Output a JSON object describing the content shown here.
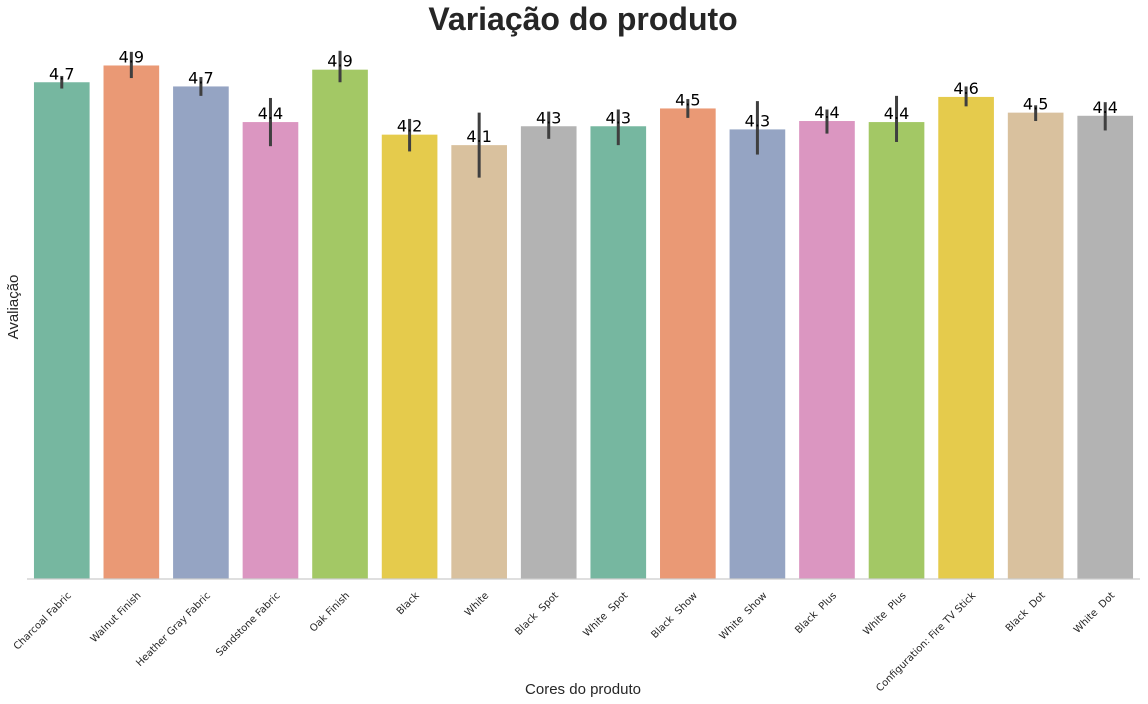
{
  "chart_data": {
    "type": "bar",
    "title": "Variação do produto",
    "xlabel": "Cores do produto",
    "ylabel": "Avaliação",
    "ylim": [
      0,
      5.0
    ],
    "grid": false,
    "categories": [
      "Charcoal Fabric",
      "Walnut Finish",
      "Heather Gray Fabric",
      "Sandstone Fabric",
      "Oak Finish",
      "Black",
      "White",
      "Black  Spot",
      "White  Spot",
      "Black  Show",
      "White  Show",
      "Black  Plus",
      "White  Plus",
      "Configuration: Fire TV Stick",
      "Black  Dot",
      "White  Dot"
    ],
    "values": [
      4.74,
      4.9,
      4.7,
      4.36,
      4.86,
      4.24,
      4.14,
      4.32,
      4.32,
      4.49,
      4.29,
      4.37,
      4.36,
      4.6,
      4.45,
      4.42
    ],
    "value_labels": [
      "4.7",
      "4.9",
      "4.7",
      "4.4",
      "4.9",
      "4.2",
      "4.1",
      "4.3",
      "4.3",
      "4.5",
      "4.3",
      "4.4",
      "4.4",
      "4.6",
      "4.5",
      "4.4"
    ],
    "error_bars": [
      [
        4.68,
        4.8
      ],
      [
        4.78,
        5.03
      ],
      [
        4.61,
        4.79
      ],
      [
        4.13,
        4.59
      ],
      [
        4.74,
        5.04
      ],
      [
        4.08,
        4.39
      ],
      [
        3.83,
        4.45
      ],
      [
        4.2,
        4.46
      ],
      [
        4.14,
        4.48
      ],
      [
        4.4,
        4.58
      ],
      [
        4.05,
        4.56
      ],
      [
        4.25,
        4.48
      ],
      [
        4.17,
        4.61
      ],
      [
        4.51,
        4.7
      ],
      [
        4.37,
        4.52
      ],
      [
        4.28,
        4.55
      ]
    ],
    "colors": [
      "#76b7a0",
      "#ea9975",
      "#95a4c3",
      "#db96c1",
      "#a3c865",
      "#e5cb4c",
      "#d9c19e",
      "#b3b3b3",
      "#76b7a0",
      "#ea9975",
      "#95a4c3",
      "#db96c1",
      "#a3c865",
      "#e5cb4c",
      "#d9c19e",
      "#b3b3b3"
    ]
  }
}
